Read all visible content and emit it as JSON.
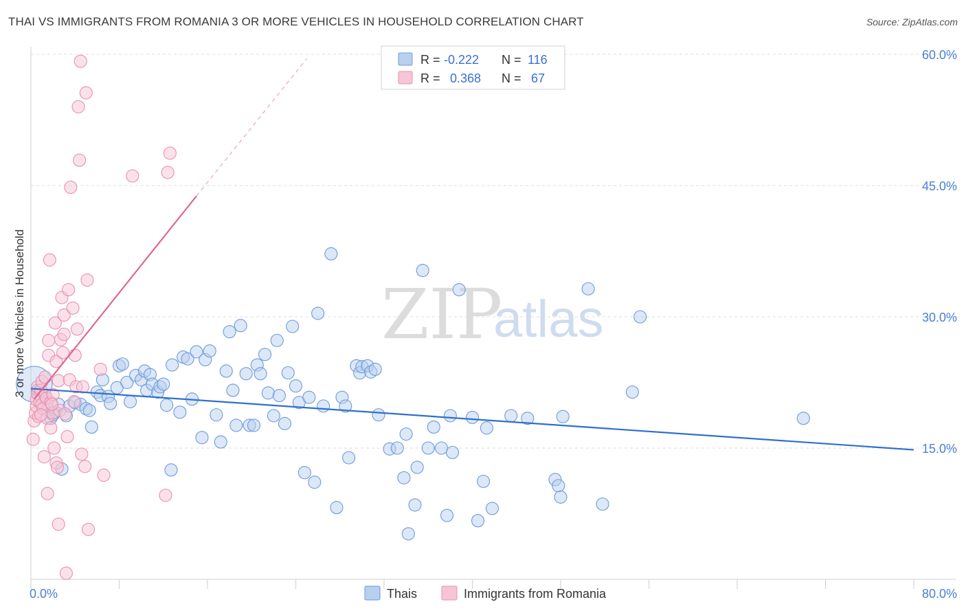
{
  "title": "THAI VS IMMIGRANTS FROM ROMANIA 3 OR MORE VEHICLES IN HOUSEHOLD CORRELATION CHART",
  "source": "Source: ZipAtlas.com",
  "watermark": {
    "zip": "ZIP",
    "atlas": "atlas"
  },
  "chart_data": {
    "type": "scatter",
    "xlabel": "",
    "ylabel": "3 or more Vehicles in Household",
    "xlim": [
      0,
      80
    ],
    "ylim": [
      0,
      62
    ],
    "x_tick_labels": {
      "left": "0.0%",
      "right": "80.0%"
    },
    "y_ticks": [
      15,
      30,
      45,
      60
    ],
    "y_tick_labels": [
      "15.0%",
      "30.0%",
      "45.0%",
      "60.0%"
    ],
    "grid": true,
    "legend_position": "top-center",
    "series": [
      {
        "name": "Thais",
        "color": "#6b9bd8",
        "fill": "#b9cff0",
        "line_color": "#2d6fd0",
        "R": "-0.222",
        "N": "116",
        "trend": {
          "x": [
            0,
            80
          ],
          "y": [
            21.8,
            14.8
          ]
        },
        "points": [
          [
            0.3,
            22.3
          ],
          [
            0.6,
            21.6
          ],
          [
            0.8,
            21.0
          ],
          [
            1.0,
            20.8
          ],
          [
            1.2,
            20.0
          ],
          [
            1.5,
            19.5
          ],
          [
            1.8,
            18.4
          ],
          [
            2.0,
            18.8
          ],
          [
            2.2,
            19.1
          ],
          [
            2.5,
            20.0
          ],
          [
            2.8,
            12.6
          ],
          [
            3.2,
            18.7
          ],
          [
            3.5,
            19.8
          ],
          [
            4.0,
            20.2
          ],
          [
            4.5,
            20.0
          ],
          [
            5.0,
            19.5
          ],
          [
            5.3,
            19.3
          ],
          [
            5.5,
            17.4
          ],
          [
            6.0,
            21.4
          ],
          [
            6.3,
            21.0
          ],
          [
            6.5,
            22.8
          ],
          [
            7.0,
            20.9
          ],
          [
            7.2,
            20.1
          ],
          [
            7.8,
            21.9
          ],
          [
            8.0,
            24.4
          ],
          [
            8.3,
            24.6
          ],
          [
            8.7,
            22.5
          ],
          [
            9.0,
            20.3
          ],
          [
            9.5,
            23.3
          ],
          [
            10.0,
            22.8
          ],
          [
            10.3,
            23.8
          ],
          [
            10.5,
            21.6
          ],
          [
            10.8,
            23.4
          ],
          [
            11.0,
            22.3
          ],
          [
            11.5,
            21.4
          ],
          [
            11.7,
            22.0
          ],
          [
            12.0,
            22.3
          ],
          [
            12.3,
            19.9
          ],
          [
            12.8,
            24.5
          ],
          [
            12.7,
            12.5
          ],
          [
            13.5,
            19.1
          ],
          [
            13.8,
            25.4
          ],
          [
            14.2,
            25.2
          ],
          [
            14.6,
            20.6
          ],
          [
            15.0,
            26.0
          ],
          [
            15.5,
            16.2
          ],
          [
            15.8,
            25.1
          ],
          [
            16.2,
            26.1
          ],
          [
            16.8,
            18.8
          ],
          [
            17.2,
            15.7
          ],
          [
            17.7,
            23.8
          ],
          [
            18.0,
            28.3
          ],
          [
            18.3,
            21.6
          ],
          [
            18.6,
            17.6
          ],
          [
            19.0,
            29.0
          ],
          [
            19.5,
            23.5
          ],
          [
            19.8,
            17.6
          ],
          [
            20.2,
            17.6
          ],
          [
            20.5,
            24.5
          ],
          [
            20.8,
            23.5
          ],
          [
            21.2,
            25.7
          ],
          [
            21.5,
            21.3
          ],
          [
            22.0,
            18.7
          ],
          [
            22.3,
            27.3
          ],
          [
            22.5,
            21.0
          ],
          [
            23.0,
            17.8
          ],
          [
            23.3,
            23.6
          ],
          [
            23.7,
            28.9
          ],
          [
            24.0,
            22.1
          ],
          [
            24.3,
            20.2
          ],
          [
            24.8,
            12.2
          ],
          [
            25.2,
            20.8
          ],
          [
            25.7,
            11.1
          ],
          [
            26.0,
            30.4
          ],
          [
            26.5,
            19.8
          ],
          [
            27.2,
            37.2
          ],
          [
            27.7,
            8.2
          ],
          [
            28.2,
            20.8
          ],
          [
            28.5,
            19.8
          ],
          [
            28.8,
            13.9
          ],
          [
            29.5,
            24.4
          ],
          [
            29.8,
            23.6
          ],
          [
            30.0,
            24.3
          ],
          [
            30.5,
            24.4
          ],
          [
            30.8,
            23.7
          ],
          [
            31.2,
            24.0
          ],
          [
            31.5,
            18.8
          ],
          [
            32.5,
            14.9
          ],
          [
            33.2,
            15.0
          ],
          [
            33.8,
            11.6
          ],
          [
            34.0,
            16.6
          ],
          [
            34.2,
            5.2
          ],
          [
            34.8,
            8.5
          ],
          [
            35.0,
            12.8
          ],
          [
            35.5,
            35.3
          ],
          [
            36.0,
            15.0
          ],
          [
            36.5,
            17.4
          ],
          [
            37.2,
            15.0
          ],
          [
            37.7,
            7.3
          ],
          [
            38.0,
            18.7
          ],
          [
            38.2,
            14.5
          ],
          [
            38.8,
            33.1
          ],
          [
            40.0,
            18.5
          ],
          [
            40.5,
            6.7
          ],
          [
            41.0,
            11.2
          ],
          [
            41.3,
            17.3
          ],
          [
            41.8,
            8.1
          ],
          [
            43.5,
            18.7
          ],
          [
            45.0,
            18.4
          ],
          [
            47.5,
            11.4
          ],
          [
            47.8,
            10.7
          ],
          [
            48.0,
            9.4
          ],
          [
            48.2,
            18.6
          ],
          [
            50.5,
            33.2
          ],
          [
            51.8,
            8.6
          ],
          [
            54.5,
            21.4
          ],
          [
            55.2,
            30.0
          ],
          [
            70.0,
            18.4
          ]
        ],
        "sizes": {
          "0.3,22.3": 3
        }
      },
      {
        "name": "Immigrants from Romania",
        "color": "#e98fae",
        "fill": "#f7c5d5",
        "line_color": "#e0678f",
        "R": "0.368",
        "N": "67",
        "trend": {
          "x": [
            0.3,
            15.0
          ],
          "y": [
            20.6,
            43.8
          ]
        },
        "trend_ext": {
          "x": [
            15.0,
            25.0
          ],
          "y": [
            43.8,
            59.5
          ]
        },
        "points": [
          [
            0.2,
            16.0
          ],
          [
            0.3,
            18.1
          ],
          [
            0.4,
            19.0
          ],
          [
            0.5,
            19.8
          ],
          [
            0.5,
            20.5
          ],
          [
            0.6,
            21.2
          ],
          [
            0.6,
            22.0
          ],
          [
            0.7,
            18.6
          ],
          [
            0.8,
            20.3
          ],
          [
            0.9,
            21.6
          ],
          [
            1.0,
            20.0
          ],
          [
            1.0,
            22.6
          ],
          [
            1.1,
            19.5
          ],
          [
            1.2,
            14.0
          ],
          [
            1.3,
            21.0
          ],
          [
            1.3,
            23.1
          ],
          [
            1.4,
            20.7
          ],
          [
            1.5,
            18.4
          ],
          [
            1.5,
            9.8
          ],
          [
            1.6,
            27.3
          ],
          [
            1.6,
            25.6
          ],
          [
            1.7,
            36.5
          ],
          [
            1.8,
            17.3
          ],
          [
            1.8,
            20.2
          ],
          [
            2.0,
            19.0
          ],
          [
            2.0,
            21.1
          ],
          [
            2.1,
            15.0
          ],
          [
            2.2,
            29.3
          ],
          [
            2.3,
            13.3
          ],
          [
            2.3,
            24.9
          ],
          [
            2.4,
            12.8
          ],
          [
            2.5,
            6.3
          ],
          [
            2.5,
            22.7
          ],
          [
            2.6,
            19.3
          ],
          [
            2.7,
            27.4
          ],
          [
            2.8,
            32.2
          ],
          [
            2.9,
            25.9
          ],
          [
            3.0,
            28.0
          ],
          [
            3.0,
            30.2
          ],
          [
            3.1,
            18.9
          ],
          [
            3.2,
            0.7
          ],
          [
            3.3,
            16.3
          ],
          [
            3.4,
            33.1
          ],
          [
            3.5,
            22.8
          ],
          [
            3.6,
            44.8
          ],
          [
            3.8,
            31.0
          ],
          [
            3.9,
            20.3
          ],
          [
            4.0,
            25.6
          ],
          [
            4.1,
            22.0
          ],
          [
            4.2,
            28.6
          ],
          [
            4.3,
            54.0
          ],
          [
            4.4,
            47.9
          ],
          [
            4.5,
            59.2
          ],
          [
            4.6,
            14.3
          ],
          [
            4.7,
            22.0
          ],
          [
            4.9,
            12.9
          ],
          [
            5.0,
            55.6
          ],
          [
            5.1,
            34.2
          ],
          [
            5.2,
            5.7
          ],
          [
            6.3,
            24.0
          ],
          [
            6.6,
            11.9
          ],
          [
            9.2,
            46.1
          ],
          [
            12.2,
            9.6
          ],
          [
            12.4,
            46.5
          ],
          [
            12.6,
            48.7
          ],
          [
            1.9,
            20.0
          ],
          [
            0.9,
            18.8
          ]
        ]
      }
    ]
  }
}
